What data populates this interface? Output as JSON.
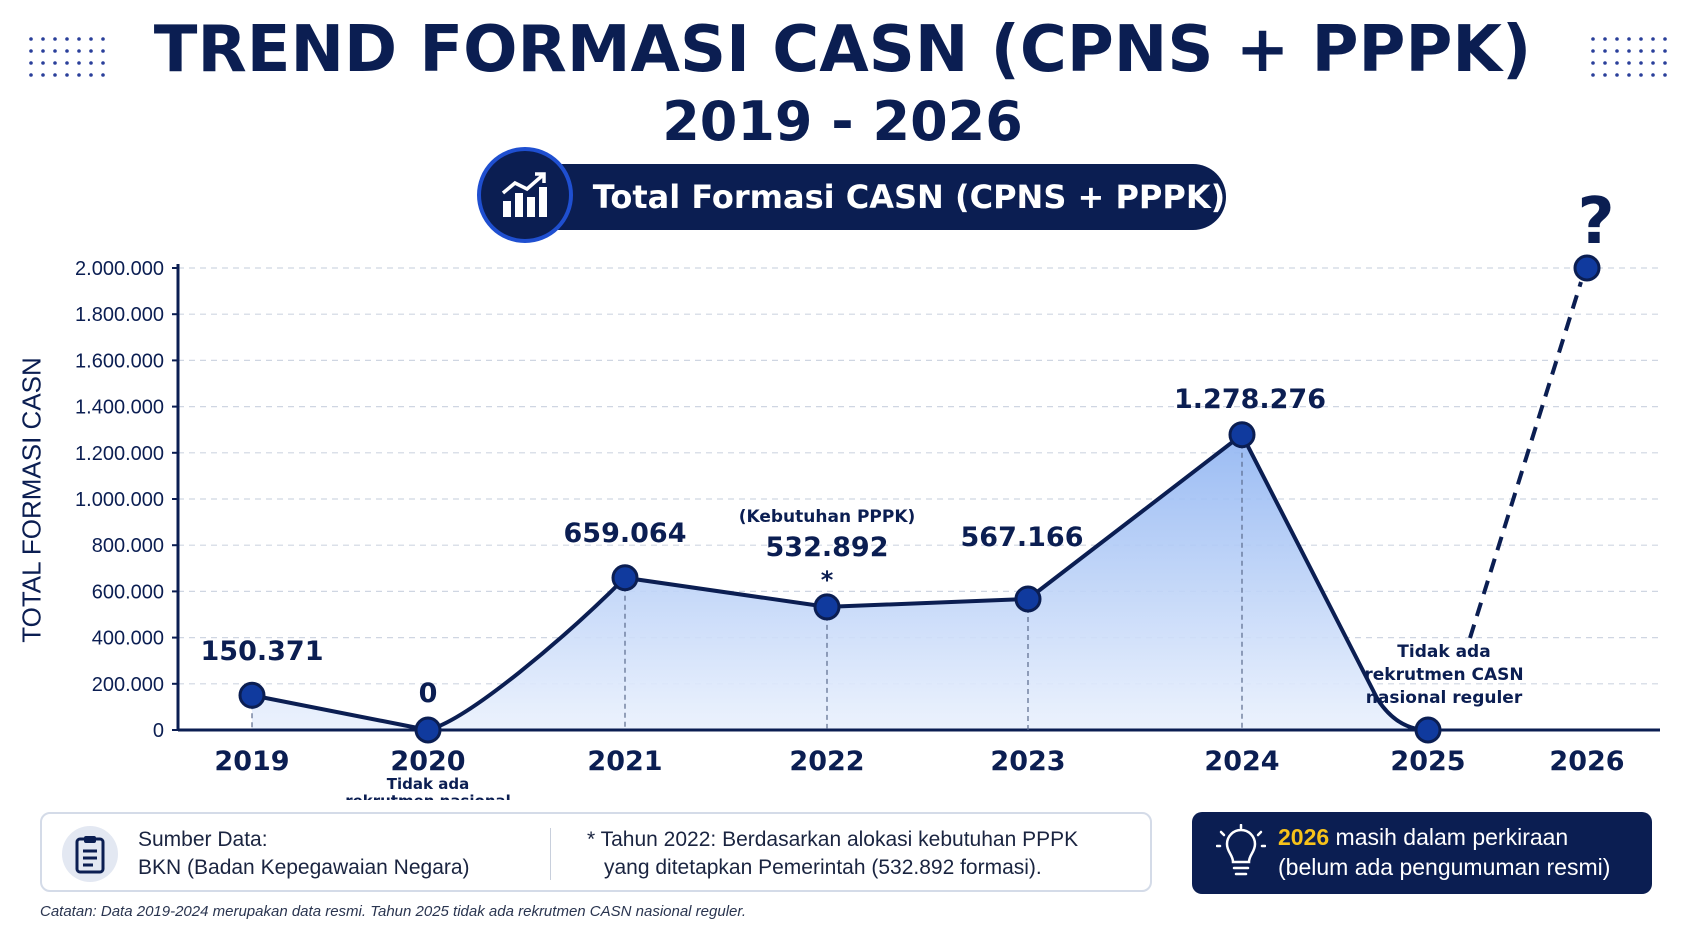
{
  "header": {
    "title": "TREND FORMASI CASN (CPNS + PPPK)",
    "subtitle": "2019 - 2026",
    "pill_label": "Total Formasi CASN (CPNS + PPPK)"
  },
  "chart_data": {
    "type": "area",
    "ylabel": "TOTAL FORMASI CASN",
    "ylim": [
      0,
      2000000
    ],
    "yticks": [
      {
        "value": 0,
        "label": "0"
      },
      {
        "value": 200000,
        "label": "200.000"
      },
      {
        "value": 400000,
        "label": "400.000"
      },
      {
        "value": 600000,
        "label": "600.000"
      },
      {
        "value": 800000,
        "label": "800.000"
      },
      {
        "value": 1000000,
        "label": "1.000.000"
      },
      {
        "value": 1200000,
        "label": "1.200.000"
      },
      {
        "value": 1400000,
        "label": "1.400.000"
      },
      {
        "value": 1600000,
        "label": "1.600.000"
      },
      {
        "value": 1800000,
        "label": "1.800.000"
      },
      {
        "value": 2000000,
        "label": "2.000.000"
      }
    ],
    "grid": true,
    "points": [
      {
        "year": "2019",
        "value": 150371,
        "label": "150.371"
      },
      {
        "year": "2020",
        "value": 0,
        "label": "0",
        "note": "Tidak ada rekrutmen nasional"
      },
      {
        "year": "2021",
        "value": 659064,
        "label": "659.064"
      },
      {
        "year": "2022",
        "value": 532892,
        "label": "532.892",
        "pre_label": "(Kebutuhan PPPK)",
        "marker": "*"
      },
      {
        "year": "2023",
        "value": 567166,
        "label": "567.166"
      },
      {
        "year": "2024",
        "value": 1278276,
        "label": "1.278.276"
      },
      {
        "year": "2025",
        "value": 0,
        "label": "",
        "note": "Tidak ada rekrutmen CASN nasional reguler"
      },
      {
        "year": "2026",
        "value": 2000000,
        "label": "?",
        "projected": true
      }
    ],
    "colors": {
      "line": "#0b1e52",
      "marker": "#103a9e",
      "area_top": "#8fb4f2",
      "area_bottom": "#eaf1fd",
      "grid": "#cfd6e2"
    }
  },
  "footer": {
    "source_label": "Sumber Data:",
    "source_value": "BKN (Badan Kepegawaian Negara)",
    "note_line1": "* Tahun 2022: Berdasarkan alokasi kebutuhan PPPK",
    "note_line2": "yang ditetapkan Pemerintah (532.892 formasi).",
    "forecast_year": "2026",
    "forecast_line1": " masih dalam perkiraan",
    "forecast_line2": "(belum ada pengumuman resmi)",
    "footnote": "Catatan: Data 2019-2024 merupakan data resmi. Tahun 2025 tidak ada rekrutmen CASN nasional reguler."
  }
}
